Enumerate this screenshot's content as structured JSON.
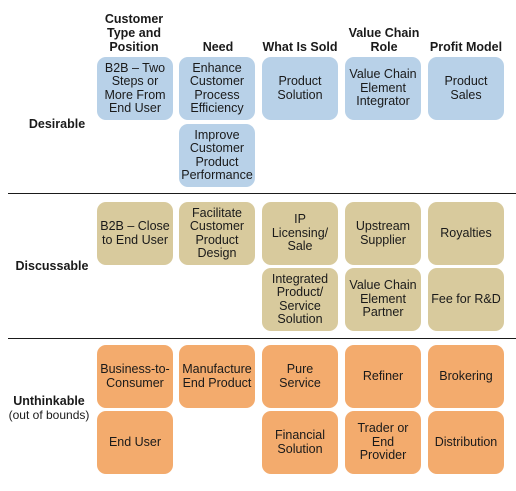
{
  "columns": {
    "customer_type": "Customer Type and Position",
    "need": "Need",
    "what_is_sold": "What Is Sold",
    "value_chain_role": "Value Chain Role",
    "profit_model": "Profit Model"
  },
  "rows": {
    "desirable": {
      "label": "Desirable",
      "sub": ""
    },
    "discussable": {
      "label": "Discussable",
      "sub": ""
    },
    "unthinkable": {
      "label": "Unthinkable",
      "sub": "(out of bounds)"
    }
  },
  "cells": {
    "desirable": {
      "customer_type": "B2B – Two Steps or More From End User",
      "need_1": "Enhance Customer Process Efficiency",
      "need_2": "Improve Customer Product Performance",
      "what_is_sold": "Product Solution",
      "value_chain_role": "Value Chain Element Integrator",
      "profit_model": "Product Sales"
    },
    "discussable": {
      "customer_type": "B2B – Close to End User",
      "need": "Facilitate Customer Product Design",
      "what_is_sold_1": "IP Licensing/ Sale",
      "what_is_sold_2": "Integrated Product/ Service Solution",
      "value_chain_role_1": "Upstream Supplier",
      "value_chain_role_2": "Value Chain Element Partner",
      "profit_model_1": "Royalties",
      "profit_model_2": "Fee for R&D"
    },
    "unthinkable": {
      "customer_type_1": "Business-to-Consumer",
      "customer_type_2": "End User",
      "need": "Manufacture End Product",
      "what_is_sold_1": "Pure Service",
      "what_is_sold_2": "Financial Solution",
      "value_chain_role_1": "Refiner",
      "value_chain_role_2": "Trader or End Provider",
      "profit_model_1": "Brokering",
      "profit_model_2": "Distribution"
    }
  },
  "colors": {
    "desirable": "#b8d1e8",
    "discussable": "#d8ca9d",
    "unthinkable": "#f3ab6d"
  }
}
